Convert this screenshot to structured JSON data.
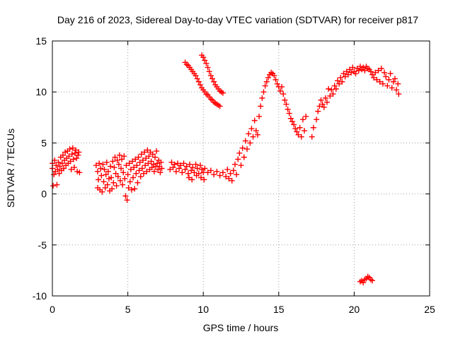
{
  "chart_data": {
    "type": "scatter",
    "title": "Day 216 of 2023, Sidereal Day-to-day VTEC variation (SDTVAR) for receiver p817",
    "xlabel": "GPS time / hours",
    "ylabel": "SDTVAR / TECUs",
    "xlim": [
      0,
      25
    ],
    "ylim": [
      -10,
      15
    ],
    "xticks": [
      0,
      5,
      10,
      15,
      20,
      25
    ],
    "yticks": [
      -10,
      -5,
      0,
      5,
      10,
      15
    ],
    "xtick_labels": [
      "0",
      "5",
      "10",
      "15",
      "20",
      "25"
    ],
    "ytick_labels": [
      "-10",
      "-5",
      "0",
      "5",
      "10",
      "15"
    ],
    "grid": true,
    "marker": "+",
    "color": "#ff0000",
    "series": [
      {
        "name": "SDTVAR",
        "points": [
          [
            0.0,
            2.5
          ],
          [
            0.0,
            3.0
          ],
          [
            0.05,
            0.8
          ],
          [
            0.1,
            1.9
          ],
          [
            0.15,
            3.3
          ],
          [
            0.2,
            2.2
          ],
          [
            0.25,
            2.8
          ],
          [
            0.3,
            0.9
          ],
          [
            0.35,
            2.4
          ],
          [
            0.4,
            3.1
          ],
          [
            0.45,
            2.0
          ],
          [
            0.5,
            2.7
          ],
          [
            0.55,
            3.6
          ],
          [
            0.6,
            2.3
          ],
          [
            0.65,
            3.0
          ],
          [
            0.7,
            3.8
          ],
          [
            0.75,
            2.5
          ],
          [
            0.8,
            3.3
          ],
          [
            0.85,
            4.1
          ],
          [
            0.9,
            2.8
          ],
          [
            0.95,
            3.5
          ],
          [
            1.0,
            4.2
          ],
          [
            1.05,
            3.0
          ],
          [
            1.1,
            3.7
          ],
          [
            1.15,
            4.4
          ],
          [
            1.2,
            3.2
          ],
          [
            1.25,
            2.4
          ],
          [
            1.3,
            3.9
          ],
          [
            1.35,
            4.5
          ],
          [
            1.4,
            3.4
          ],
          [
            1.45,
            2.6
          ],
          [
            1.5,
            4.0
          ],
          [
            1.55,
            4.3
          ],
          [
            1.6,
            3.5
          ],
          [
            1.65,
            2.2
          ],
          [
            1.7,
            3.8
          ],
          [
            1.75,
            4.1
          ],
          [
            1.8,
            2.1
          ],
          [
            2.9,
            2.8
          ],
          [
            3.0,
            0.6
          ],
          [
            3.0,
            2.2
          ],
          [
            3.05,
            1.4
          ],
          [
            3.1,
            3.0
          ],
          [
            3.15,
            0.4
          ],
          [
            3.2,
            2.5
          ],
          [
            3.25,
            1.8
          ],
          [
            3.3,
            0.2
          ],
          [
            3.35,
            2.9
          ],
          [
            3.4,
            1.2
          ],
          [
            3.45,
            2.4
          ],
          [
            3.5,
            0.6
          ],
          [
            3.55,
            1.9
          ],
          [
            3.6,
            3.1
          ],
          [
            3.65,
            0.9
          ],
          [
            3.7,
            2.2
          ],
          [
            3.75,
            1.5
          ],
          [
            3.8,
            0.3
          ],
          [
            3.85,
            2.7
          ],
          [
            3.9,
            1.6
          ],
          [
            3.95,
            0.5
          ],
          [
            4.0,
            3.2
          ],
          [
            4.05,
            1.1
          ],
          [
            4.1,
            2.6
          ],
          [
            4.15,
            3.6
          ],
          [
            4.2,
            2.0
          ],
          [
            4.25,
            0.8
          ],
          [
            4.3,
            3.3
          ],
          [
            4.35,
            1.7
          ],
          [
            4.4,
            2.9
          ],
          [
            4.45,
            3.8
          ],
          [
            4.5,
            1.3
          ],
          [
            4.55,
            2.5
          ],
          [
            4.6,
            3.4
          ],
          [
            4.65,
            0.9
          ],
          [
            4.7,
            2.1
          ],
          [
            4.75,
            3.7
          ],
          [
            4.8,
            1.5
          ],
          [
            4.85,
            -0.2
          ],
          [
            4.9,
            2.8
          ],
          [
            4.95,
            -0.6
          ],
          [
            5.0,
            1.9
          ],
          [
            5.05,
            0.6
          ],
          [
            5.1,
            3.0
          ],
          [
            5.15,
            1.2
          ],
          [
            5.2,
            2.4
          ],
          [
            5.25,
            0.4
          ],
          [
            5.3,
            3.2
          ],
          [
            5.35,
            1.6
          ],
          [
            5.4,
            2.6
          ],
          [
            5.45,
            0.5
          ],
          [
            5.5,
            3.4
          ],
          [
            5.55,
            2.0
          ],
          [
            5.6,
            2.8
          ],
          [
            5.65,
            1.1
          ],
          [
            5.7,
            3.6
          ],
          [
            5.75,
            2.3
          ],
          [
            5.8,
            3.1
          ],
          [
            5.85,
            1.7
          ],
          [
            5.9,
            3.9
          ],
          [
            5.95,
            2.5
          ],
          [
            6.0,
            3.3
          ],
          [
            6.05,
            2.0
          ],
          [
            6.1,
            4.1
          ],
          [
            6.15,
            2.8
          ],
          [
            6.2,
            3.5
          ],
          [
            6.25,
            2.2
          ],
          [
            6.3,
            4.3
          ],
          [
            6.35,
            3.0
          ],
          [
            6.4,
            3.7
          ],
          [
            6.45,
            2.4
          ],
          [
            6.5,
            4.1
          ],
          [
            6.55,
            3.2
          ],
          [
            6.6,
            2.6
          ],
          [
            6.65,
            3.9
          ],
          [
            6.7,
            2.9
          ],
          [
            6.75,
            2.2
          ],
          [
            6.8,
            3.6
          ],
          [
            6.85,
            2.7
          ],
          [
            6.9,
            4.2
          ],
          [
            6.95,
            3.0
          ],
          [
            7.0,
            2.4
          ],
          [
            7.05,
            3.3
          ],
          [
            7.1,
            2.7
          ],
          [
            7.15,
            2.1
          ],
          [
            7.2,
            3.1
          ],
          [
            7.25,
            2.5
          ],
          [
            7.8,
            2.4
          ],
          [
            7.9,
            3.1
          ],
          [
            8.0,
            2.6
          ],
          [
            8.1,
            2.9
          ],
          [
            8.2,
            2.2
          ],
          [
            8.3,
            3.0
          ],
          [
            8.4,
            2.5
          ],
          [
            8.5,
            2.8
          ],
          [
            8.6,
            2.1
          ],
          [
            8.7,
            3.0
          ],
          [
            8.8,
            2.4
          ],
          [
            8.9,
            2.7
          ],
          [
            9.0,
            2.0
          ],
          [
            9.05,
            1.6
          ],
          [
            9.1,
            2.9
          ],
          [
            9.2,
            2.3
          ],
          [
            9.25,
            1.4
          ],
          [
            9.3,
            2.6
          ],
          [
            9.4,
            2.1
          ],
          [
            9.5,
            2.9
          ],
          [
            9.55,
            1.8
          ],
          [
            9.6,
            2.5
          ],
          [
            9.7,
            2.0
          ],
          [
            9.8,
            2.8
          ],
          [
            9.85,
            1.6
          ],
          [
            9.9,
            2.4
          ],
          [
            10.0,
            2.1
          ],
          [
            10.05,
            1.4
          ],
          [
            10.1,
            2.5
          ],
          [
            10.3,
            2.1
          ],
          [
            10.5,
            2.3
          ],
          [
            10.7,
            1.9
          ],
          [
            10.9,
            2.2
          ],
          [
            11.1,
            1.8
          ],
          [
            11.3,
            2.1
          ],
          [
            11.5,
            1.7
          ],
          [
            11.6,
            2.4
          ],
          [
            11.7,
            1.5
          ],
          [
            11.8,
            2.0
          ],
          [
            11.9,
            1.3
          ],
          [
            12.0,
            2.3
          ],
          [
            12.1,
            2.9
          ],
          [
            12.2,
            1.9
          ],
          [
            12.3,
            3.4
          ],
          [
            12.4,
            4.0
          ],
          [
            12.5,
            2.8
          ],
          [
            12.6,
            4.5
          ],
          [
            12.7,
            3.6
          ],
          [
            12.8,
            5.2
          ],
          [
            12.9,
            4.4
          ],
          [
            13.0,
            5.9
          ],
          [
            13.1,
            5.0
          ],
          [
            13.2,
            6.4
          ],
          [
            13.3,
            5.6
          ],
          [
            13.4,
            7.2
          ],
          [
            13.5,
            6.2
          ],
          [
            13.6,
            5.8
          ],
          [
            13.7,
            7.6
          ],
          [
            13.8,
            8.6
          ],
          [
            13.9,
            9.4
          ],
          [
            14.0,
            10.0
          ],
          [
            14.1,
            10.6
          ],
          [
            14.2,
            11.0
          ],
          [
            14.3,
            11.4
          ],
          [
            14.4,
            11.7
          ],
          [
            14.5,
            11.9
          ],
          [
            14.6,
            11.8
          ],
          [
            14.7,
            11.6
          ],
          [
            14.8,
            11.2
          ],
          [
            14.9,
            10.8
          ],
          [
            15.0,
            10.5
          ],
          [
            15.1,
            10.1
          ],
          [
            15.2,
            10.5
          ],
          [
            15.3,
            9.8
          ],
          [
            15.4,
            9.2
          ],
          [
            15.5,
            8.8
          ],
          [
            15.6,
            8.3
          ],
          [
            15.7,
            7.9
          ],
          [
            15.8,
            7.4
          ],
          [
            15.9,
            7.1
          ],
          [
            16.0,
            6.8
          ],
          [
            16.1,
            6.4
          ],
          [
            16.2,
            6.1
          ],
          [
            16.3,
            5.8
          ],
          [
            16.4,
            6.5
          ],
          [
            16.5,
            5.6
          ],
          [
            16.6,
            7.3
          ],
          [
            16.7,
            6.2
          ],
          [
            16.8,
            7.6
          ],
          [
            17.2,
            5.6
          ],
          [
            17.3,
            6.5
          ],
          [
            17.5,
            7.3
          ],
          [
            17.6,
            8.1
          ],
          [
            17.7,
            8.6
          ],
          [
            17.8,
            9.2
          ],
          [
            17.9,
            8.8
          ],
          [
            18.0,
            8.5
          ],
          [
            18.1,
            9.4
          ],
          [
            18.2,
            9.0
          ],
          [
            18.3,
            10.3
          ],
          [
            18.4,
            9.6
          ],
          [
            18.5,
            10.2
          ],
          [
            18.6,
            9.8
          ],
          [
            18.7,
            10.6
          ],
          [
            18.8,
            10.3
          ],
          [
            18.9,
            11.1
          ],
          [
            19.0,
            10.8
          ],
          [
            19.1,
            11.4
          ],
          [
            19.2,
            11.0
          ],
          [
            19.3,
            11.8
          ],
          [
            19.4,
            11.5
          ],
          [
            19.5,
            12.0
          ],
          [
            19.6,
            11.7
          ],
          [
            19.7,
            12.2
          ],
          [
            19.8,
            11.9
          ],
          [
            19.9,
            12.4
          ],
          [
            20.0,
            12.0
          ],
          [
            20.1,
            11.8
          ],
          [
            20.2,
            12.3
          ],
          [
            20.3,
            12.1
          ],
          [
            20.4,
            12.5
          ],
          [
            20.5,
            12.2
          ],
          [
            20.6,
            12.4
          ],
          [
            20.7,
            12.1
          ],
          [
            20.8,
            12.5
          ],
          [
            20.9,
            12.3
          ],
          [
            21.0,
            12.2
          ],
          [
            21.1,
            12.0
          ],
          [
            21.2,
            11.7
          ],
          [
            21.3,
            11.4
          ],
          [
            21.4,
            11.9
          ],
          [
            21.5,
            11.2
          ],
          [
            21.6,
            12.1
          ],
          [
            21.7,
            11.0
          ],
          [
            21.8,
            12.3
          ],
          [
            21.9,
            10.8
          ],
          [
            22.0,
            11.9
          ],
          [
            22.1,
            11.5
          ],
          [
            22.2,
            10.6
          ],
          [
            22.3,
            11.2
          ],
          [
            22.4,
            11.8
          ],
          [
            22.5,
            10.4
          ],
          [
            22.6,
            11.0
          ],
          [
            22.7,
            11.3
          ],
          [
            22.8,
            10.2
          ],
          [
            22.9,
            10.8
          ],
          [
            22.95,
            9.8
          ],
          [
            8.8,
            12.9
          ],
          [
            8.9,
            12.7
          ],
          [
            9.0,
            12.6
          ],
          [
            9.1,
            12.4
          ],
          [
            9.2,
            12.2
          ],
          [
            9.3,
            12.0
          ],
          [
            9.4,
            11.8
          ],
          [
            9.5,
            11.6
          ],
          [
            9.6,
            11.3
          ],
          [
            9.7,
            11.0
          ],
          [
            9.8,
            10.7
          ],
          [
            9.9,
            10.4
          ],
          [
            10.0,
            10.2
          ],
          [
            10.1,
            10.0
          ],
          [
            10.2,
            9.8
          ],
          [
            10.3,
            9.7
          ],
          [
            10.4,
            9.5
          ],
          [
            10.5,
            9.3
          ],
          [
            10.6,
            9.2
          ],
          [
            10.7,
            9.0
          ],
          [
            10.8,
            8.9
          ],
          [
            10.9,
            8.8
          ],
          [
            11.0,
            8.7
          ],
          [
            11.1,
            8.6
          ],
          [
            9.9,
            13.6
          ],
          [
            10.0,
            13.4
          ],
          [
            10.1,
            13.1
          ],
          [
            10.2,
            12.8
          ],
          [
            10.3,
            12.4
          ],
          [
            10.4,
            12.0
          ],
          [
            10.5,
            11.6
          ],
          [
            10.6,
            11.3
          ],
          [
            10.7,
            11.0
          ],
          [
            10.8,
            10.7
          ],
          [
            10.9,
            10.5
          ],
          [
            11.0,
            10.3
          ],
          [
            11.1,
            10.1
          ],
          [
            11.2,
            10.0
          ],
          [
            11.3,
            9.9
          ],
          [
            20.4,
            -8.6
          ],
          [
            20.5,
            -8.5
          ],
          [
            20.6,
            -8.7
          ],
          [
            20.7,
            -8.4
          ],
          [
            20.8,
            -8.3
          ],
          [
            20.9,
            -8.1
          ],
          [
            21.0,
            -8.2
          ],
          [
            21.1,
            -8.4
          ],
          [
            21.2,
            -8.5
          ]
        ]
      }
    ]
  }
}
